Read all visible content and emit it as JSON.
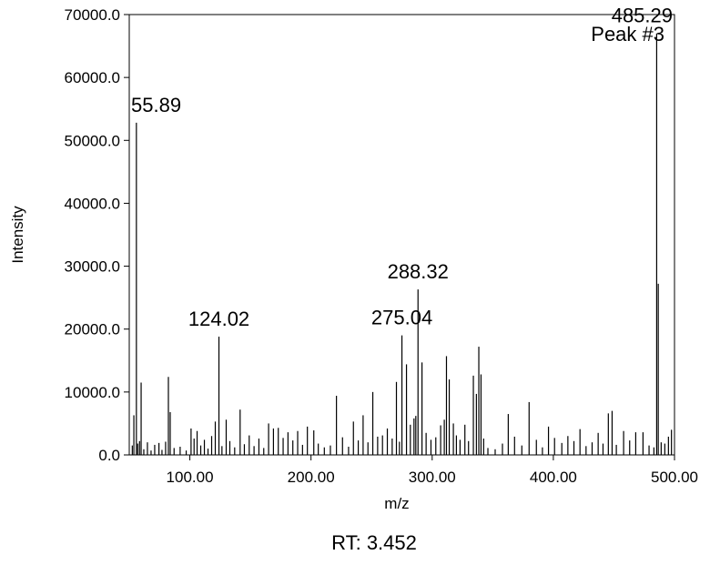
{
  "chart_data": {
    "type": "stick",
    "title": "RT:  3.452",
    "peak_name": "Peak #3",
    "x_label": "m/z",
    "y_label": "Intensity",
    "color": "#000000",
    "xlim": [
      50,
      500
    ],
    "ylim": [
      0,
      70000
    ],
    "xticks": [
      {
        "value": 100,
        "label": "100.00"
      },
      {
        "value": 200,
        "label": "200.00"
      },
      {
        "value": 300,
        "label": "300.00"
      },
      {
        "value": 400,
        "label": "400.00"
      },
      {
        "value": 500,
        "label": "500.00"
      }
    ],
    "yticks": [
      {
        "value": 0,
        "label": "0.0"
      },
      {
        "value": 10000,
        "label": "10000.0"
      },
      {
        "value": 20000,
        "label": "20000.0"
      },
      {
        "value": 30000,
        "label": "30000.0"
      },
      {
        "value": 40000,
        "label": "40000.0"
      },
      {
        "value": 50000,
        "label": "50000.0"
      },
      {
        "value": 60000,
        "label": "60000.0"
      },
      {
        "value": 70000,
        "label": "70000.0"
      }
    ],
    "x": [
      52.5,
      53.8,
      55.89,
      57.0,
      58.5,
      59.8,
      62.0,
      65.0,
      68.0,
      71.0,
      74.5,
      77.0,
      80.0,
      82.3,
      83.8,
      87.0,
      92.0,
      97.0,
      101.0,
      103.5,
      106.0,
      109.0,
      112.0,
      115.0,
      118.0,
      121.0,
      124.02,
      126.5,
      130.0,
      133.0,
      137.0,
      141.5,
      145.0,
      149.0,
      153.0,
      157.0,
      161.0,
      165.0,
      169.0,
      173.0,
      177.0,
      181.0,
      185.0,
      189.0,
      193.0,
      197.0,
      202.3,
      206.0,
      211.0,
      216.0,
      221.0,
      226.0,
      231.0,
      235.0,
      239.0,
      243.0,
      247.0,
      251.0,
      255.0,
      259.0,
      263.0,
      267.0,
      270.5,
      273.0,
      275.04,
      278.8,
      282.0,
      285.0,
      286.5,
      288.32,
      291.6,
      295.0,
      299.0,
      303.0,
      307.0,
      310.0,
      311.8,
      314.1,
      317.5,
      320.0,
      323.0,
      327.0,
      330.0,
      334.0,
      336.5,
      338.5,
      340.3,
      342.5,
      346.0,
      352.0,
      358.0,
      362.8,
      368.0,
      374.0,
      380.0,
      386.0,
      391.0,
      396.0,
      401.0,
      407.0,
      412.0,
      417.0,
      422.0,
      427.0,
      432.0,
      437.0,
      441.0,
      445.4,
      448.5,
      452.0,
      458.0,
      463.0,
      468.0,
      474.0,
      479.0,
      483.0,
      485.29,
      486.6,
      489.0,
      492.0,
      495.0,
      497.5
    ],
    "values": [
      1500,
      6300,
      52800,
      1800,
      2200,
      11500,
      900,
      2000,
      700,
      1600,
      1900,
      800,
      2100,
      12400,
      6800,
      1100,
      1300,
      700,
      4200,
      2600,
      3800,
      1500,
      2400,
      1000,
      3000,
      5300,
      18800,
      1400,
      5600,
      2200,
      1200,
      7200,
      1700,
      3100,
      1400,
      2600,
      1100,
      5000,
      4200,
      4300,
      2700,
      3600,
      2300,
      3800,
      1600,
      4500,
      3900,
      1800,
      1200,
      1500,
      9400,
      2800,
      1300,
      5300,
      2300,
      6300,
      2000,
      10000,
      2900,
      3100,
      4200,
      2600,
      11600,
      2100,
      19000,
      14400,
      4800,
      5800,
      6200,
      26300,
      14700,
      3500,
      2400,
      2800,
      4700,
      5600,
      15700,
      12000,
      5000,
      3100,
      2400,
      4800,
      2200,
      12600,
      9700,
      17200,
      12800,
      2600,
      1100,
      900,
      1800,
      6500,
      2900,
      1500,
      8400,
      2400,
      1200,
      4500,
      2700,
      1900,
      3000,
      2200,
      4100,
      1400,
      2000,
      3500,
      1800,
      6600,
      7000,
      1600,
      3800,
      2300,
      3600,
      3600,
      1500,
      1200,
      67000,
      27200,
      2000,
      1800,
      2900,
      4000
    ],
    "annotations": [
      {
        "text": "55.89",
        "x": 55.89
      },
      {
        "text": "124.02",
        "x": 124.02
      },
      {
        "text": "275.04",
        "x": 275.04
      },
      {
        "text": "288.32",
        "x": 288.32
      },
      {
        "text": "485.29",
        "x": 485.29
      }
    ]
  }
}
